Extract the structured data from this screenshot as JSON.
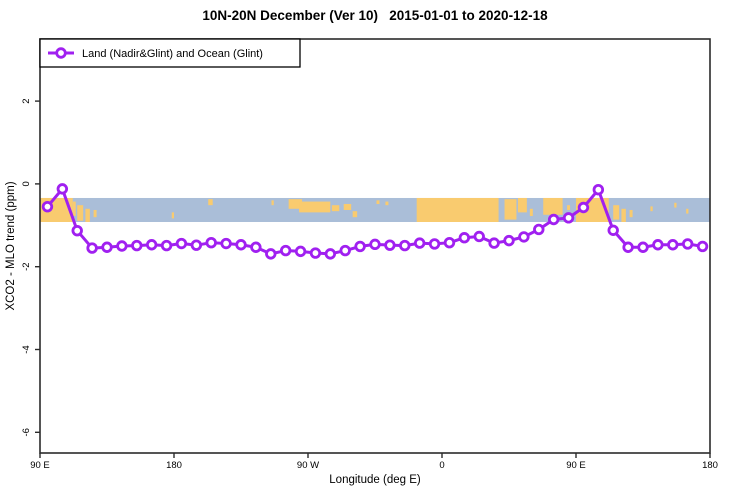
{
  "title": "10N-20N December (Ver 10)   2015-01-01 to 2020-12-18",
  "legend": {
    "label": "Land (Nadir&Glint) and Ocean (Glint)"
  },
  "colors": {
    "line": "#A020F0",
    "marker_fill": "#FFFFFF",
    "ocean": "#AABED8",
    "land": "#F9CB6F",
    "frame": "#2b2b2b",
    "text": "#000000"
  },
  "chart_data": {
    "type": "line",
    "title": "10N-20N December (Ver 10)   2015-01-01 to 2020-12-18",
    "xlabel": "Longitude (deg E)",
    "ylabel": "XCO2 - MLO trend (ppm)",
    "xlim": [
      90,
      540
    ],
    "ylim": [
      -6.5,
      3.5
    ],
    "grid": "off",
    "legend_position": "topleft",
    "x_ticks": [
      {
        "value": 90,
        "label": "90 E"
      },
      {
        "value": 180,
        "label": "180"
      },
      {
        "value": 270,
        "label": "90 W"
      },
      {
        "value": 360,
        "label": "0"
      },
      {
        "value": 450,
        "label": "90 E"
      },
      {
        "value": 540,
        "label": "180"
      }
    ],
    "y_ticks": [
      {
        "value": 2,
        "label": "2"
      },
      {
        "value": 0,
        "label": "0"
      },
      {
        "value": -2,
        "label": "-2"
      },
      {
        "value": -4,
        "label": "-4"
      },
      {
        "value": -6,
        "label": "-6"
      }
    ],
    "series": [
      {
        "name": "Land (Nadir&Glint) and Ocean (Glint)",
        "x": [
          95,
          105,
          115,
          125,
          135,
          145,
          155,
          165,
          175,
          185,
          195,
          205,
          215,
          225,
          235,
          245,
          255,
          265,
          275,
          285,
          295,
          305,
          315,
          325,
          335,
          345,
          355,
          365,
          375,
          385,
          395,
          405,
          415,
          425,
          435,
          445,
          455,
          465,
          475,
          485,
          495,
          505,
          515,
          525,
          535
        ],
        "values": [
          -0.55,
          -0.12,
          -1.13,
          -1.55,
          -1.53,
          -1.5,
          -1.49,
          -1.47,
          -1.49,
          -1.44,
          -1.48,
          -1.42,
          -1.44,
          -1.47,
          -1.53,
          -1.69,
          -1.61,
          -1.63,
          -1.67,
          -1.69,
          -1.61,
          -1.51,
          -1.46,
          -1.48,
          -1.49,
          -1.43,
          -1.45,
          -1.42,
          -1.3,
          -1.27,
          -1.43,
          -1.37,
          -1.28,
          -1.1,
          -0.86,
          -0.82,
          -0.57,
          -0.14,
          -1.12,
          -1.53,
          -1.53,
          -1.47,
          -1.47,
          -1.45,
          -1.51
        ]
      }
    ],
    "map_band": {
      "description": "world-map strip of the 10N-20N latitude band",
      "y_top": -0.34,
      "y_bottom": -0.92,
      "land": [
        {
          "x1": 90,
          "x2": 112,
          "t": 0,
          "b": 1
        },
        {
          "x1": 112,
          "x2": 114,
          "t": 0.15,
          "b": 0.75
        },
        {
          "x1": 115,
          "x2": 119,
          "t": 0.3,
          "b": 0.95
        },
        {
          "x1": 120.5,
          "x2": 123.5,
          "t": 0.45,
          "b": 1
        },
        {
          "x1": 126,
          "x2": 128,
          "t": 0.5,
          "b": 0.8
        },
        {
          "x1": 178.5,
          "x2": 180,
          "t": 0.6,
          "b": 0.85
        },
        {
          "x1": 203,
          "x2": 206,
          "t": 0.05,
          "b": 0.3
        },
        {
          "x1": 245.5,
          "x2": 247,
          "t": 0.1,
          "b": 0.3
        },
        {
          "x1": 257,
          "x2": 266,
          "t": 0.05,
          "b": 0.45
        },
        {
          "x1": 264,
          "x2": 285,
          "t": 0.15,
          "b": 0.6
        },
        {
          "x1": 286,
          "x2": 291,
          "t": 0.3,
          "b": 0.55
        },
        {
          "x1": 294,
          "x2": 299,
          "t": 0.25,
          "b": 0.5
        },
        {
          "x1": 300,
          "x2": 303,
          "t": 0.55,
          "b": 0.8
        },
        {
          "x1": 316,
          "x2": 318,
          "t": 0.1,
          "b": 0.25
        },
        {
          "x1": 322,
          "x2": 324,
          "t": 0.15,
          "b": 0.3
        },
        {
          "x1": 343,
          "x2": 398,
          "t": 0,
          "b": 1
        },
        {
          "x1": 402,
          "x2": 410,
          "t": 0.05,
          "b": 0.9
        },
        {
          "x1": 411,
          "x2": 417,
          "t": 0,
          "b": 0.6
        },
        {
          "x1": 419,
          "x2": 421,
          "t": 0.45,
          "b": 0.75
        },
        {
          "x1": 428,
          "x2": 441,
          "t": 0,
          "b": 0.7
        },
        {
          "x1": 444,
          "x2": 446,
          "t": 0.3,
          "b": 0.5
        },
        {
          "x1": 450,
          "x2": 472,
          "t": 0,
          "b": 1
        },
        {
          "x1": 475,
          "x2": 479,
          "t": 0.3,
          "b": 0.9
        },
        {
          "x1": 480.5,
          "x2": 483.5,
          "t": 0.45,
          "b": 1
        },
        {
          "x1": 486,
          "x2": 488,
          "t": 0.5,
          "b": 0.8
        },
        {
          "x1": 500,
          "x2": 501.5,
          "t": 0.35,
          "b": 0.55
        },
        {
          "x1": 516,
          "x2": 517.5,
          "t": 0.2,
          "b": 0.4
        },
        {
          "x1": 524,
          "x2": 525.5,
          "t": 0.45,
          "b": 0.65
        }
      ]
    }
  }
}
